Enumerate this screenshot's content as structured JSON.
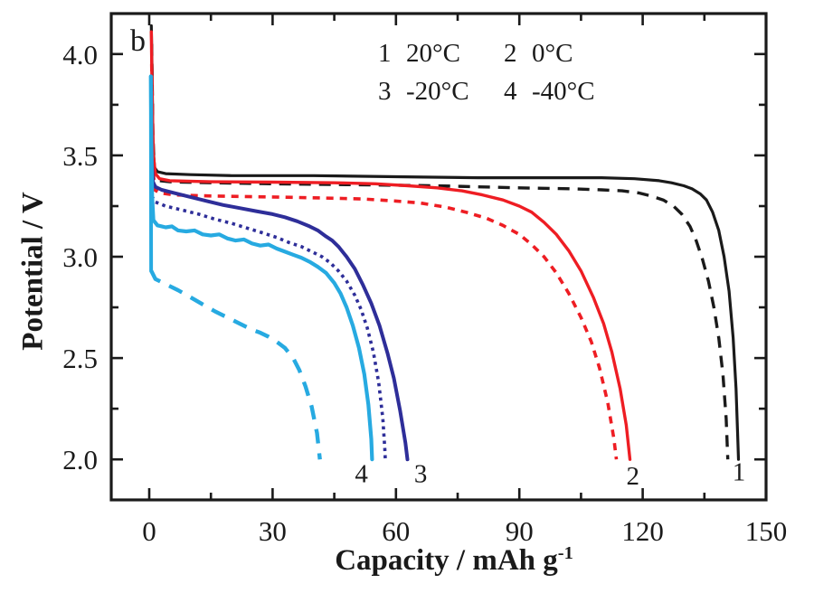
{
  "figure": {
    "panel_label": "b",
    "background": "#ffffff"
  },
  "legend": {
    "items": [
      {
        "num": "1",
        "temp": "20°C"
      },
      {
        "num": "2",
        "temp": "0°C"
      },
      {
        "num": "3",
        "temp": "-20°C"
      },
      {
        "num": "4",
        "temp": "-40°C"
      }
    ]
  },
  "axes": {
    "xlabel_main": "Capacity / mAh g",
    "xlabel_sup": "-1",
    "ylabel": "Potential / V"
  },
  "chart_data": {
    "type": "line",
    "title": "",
    "xlabel": "Capacity / mAh g^-1",
    "ylabel": "Potential / V",
    "xlim": [
      -9.24,
      150
    ],
    "ylim": [
      1.8,
      4.2
    ],
    "x_ticks_major": [
      0,
      30,
      60,
      90,
      120,
      150
    ],
    "x_ticks_minor": [
      15,
      45,
      75,
      105,
      135
    ],
    "y_ticks_major": [
      2.0,
      2.5,
      3.0,
      3.5,
      4.0
    ],
    "y_ticks_minor": [
      2.25,
      2.75,
      3.25,
      3.75
    ],
    "grid": false,
    "legend_position": "top-center-inside",
    "legend_note": "1 20°C, 2 0°C, 3 -20°C, 4 -40°C; solid and dashed curve pair per temperature",
    "axis_color": "#1a1a1a",
    "series": [
      {
        "name": "curve-1-20C-solid",
        "temperature": "20°C",
        "label": "1",
        "color": "#1a1a1a",
        "width": 3.2,
        "dash": "",
        "points": [
          [
            0.5,
            4.14
          ],
          [
            0.7,
            3.9
          ],
          [
            0.9,
            3.55
          ],
          [
            1.3,
            3.44
          ],
          [
            2,
            3.42
          ],
          [
            4,
            3.41
          ],
          [
            10,
            3.405
          ],
          [
            20,
            3.4
          ],
          [
            40,
            3.4
          ],
          [
            60,
            3.395
          ],
          [
            80,
            3.39
          ],
          [
            100,
            3.39
          ],
          [
            110,
            3.39
          ],
          [
            118,
            3.385
          ],
          [
            124,
            3.375
          ],
          [
            127,
            3.365
          ],
          [
            130,
            3.35
          ],
          [
            132,
            3.335
          ],
          [
            134,
            3.31
          ],
          [
            135.5,
            3.28
          ],
          [
            137,
            3.22
          ],
          [
            138.5,
            3.13
          ],
          [
            139.8,
            3.0
          ],
          [
            141,
            2.83
          ],
          [
            142,
            2.6
          ],
          [
            142.7,
            2.35
          ],
          [
            143.1,
            2.12
          ],
          [
            143.3,
            2.0
          ]
        ]
      },
      {
        "name": "curve-1-20C-dashed",
        "temperature": "20°C",
        "label": "1",
        "color": "#1a1a1a",
        "width": 3.4,
        "dash": "13 9",
        "points": [
          [
            0.6,
            4.05
          ],
          [
            0.9,
            3.6
          ],
          [
            1.3,
            3.4
          ],
          [
            2.5,
            3.375
          ],
          [
            5,
            3.37
          ],
          [
            15,
            3.365
          ],
          [
            30,
            3.36
          ],
          [
            50,
            3.355
          ],
          [
            70,
            3.35
          ],
          [
            90,
            3.34
          ],
          [
            103,
            3.335
          ],
          [
            110,
            3.33
          ],
          [
            115,
            3.325
          ],
          [
            119,
            3.315
          ],
          [
            122,
            3.3
          ],
          [
            125,
            3.28
          ],
          [
            127.5,
            3.25
          ],
          [
            129.5,
            3.21
          ],
          [
            131.5,
            3.15
          ],
          [
            133,
            3.08
          ],
          [
            134.5,
            2.99
          ],
          [
            136,
            2.88
          ],
          [
            137.3,
            2.75
          ],
          [
            138.5,
            2.6
          ],
          [
            139.5,
            2.42
          ],
          [
            140.3,
            2.2
          ],
          [
            140.7,
            2.0
          ]
        ]
      },
      {
        "name": "curve-2-0C-solid",
        "temperature": "0°C",
        "label": "2",
        "color": "#ee1d23",
        "width": 3.4,
        "dash": "",
        "points": [
          [
            0.5,
            4.11
          ],
          [
            0.7,
            3.8
          ],
          [
            1,
            3.5
          ],
          [
            1.5,
            3.41
          ],
          [
            2.5,
            3.385
          ],
          [
            5,
            3.375
          ],
          [
            15,
            3.37
          ],
          [
            30,
            3.368
          ],
          [
            45,
            3.365
          ],
          [
            55,
            3.36
          ],
          [
            63,
            3.35
          ],
          [
            70,
            3.34
          ],
          [
            76,
            3.325
          ],
          [
            81,
            3.305
          ],
          [
            86,
            3.28
          ],
          [
            90,
            3.25
          ],
          [
            93,
            3.22
          ],
          [
            96,
            3.17
          ],
          [
            99,
            3.11
          ],
          [
            102,
            3.03
          ],
          [
            105,
            2.93
          ],
          [
            108,
            2.8
          ],
          [
            110.5,
            2.67
          ],
          [
            112.5,
            2.53
          ],
          [
            114.5,
            2.35
          ],
          [
            116,
            2.17
          ],
          [
            116.9,
            2.0
          ]
        ]
      },
      {
        "name": "curve-2-0C-dashed",
        "temperature": "0°C",
        "label": "2",
        "color": "#ee1d23",
        "width": 3.6,
        "dash": "8 7",
        "points": [
          [
            0.6,
            3.95
          ],
          [
            0.9,
            3.45
          ],
          [
            1.3,
            3.33
          ],
          [
            2.5,
            3.315
          ],
          [
            6,
            3.305
          ],
          [
            15,
            3.3
          ],
          [
            30,
            3.295
          ],
          [
            42,
            3.29
          ],
          [
            52,
            3.285
          ],
          [
            60,
            3.275
          ],
          [
            66,
            3.265
          ],
          [
            72,
            3.245
          ],
          [
            77,
            3.22
          ],
          [
            82,
            3.19
          ],
          [
            86,
            3.155
          ],
          [
            90,
            3.11
          ],
          [
            93,
            3.06
          ],
          [
            96,
            3.0
          ],
          [
            99,
            2.92
          ],
          [
            102,
            2.82
          ],
          [
            105,
            2.7
          ],
          [
            107.5,
            2.58
          ],
          [
            109.5,
            2.45
          ],
          [
            111.5,
            2.28
          ],
          [
            113,
            2.1
          ],
          [
            113.6,
            2.0
          ]
        ]
      },
      {
        "name": "curve-3-neg20C-solid",
        "temperature": "-20°C",
        "label": "3",
        "color": "#2e2e99",
        "width": 4,
        "dash": "",
        "points": [
          [
            0.6,
            3.48
          ],
          [
            0.9,
            3.37
          ],
          [
            1.5,
            3.345
          ],
          [
            3,
            3.33
          ],
          [
            6,
            3.315
          ],
          [
            10,
            3.295
          ],
          [
            14,
            3.275
          ],
          [
            18,
            3.255
          ],
          [
            22,
            3.24
          ],
          [
            26,
            3.225
          ],
          [
            30,
            3.21
          ],
          [
            33,
            3.195
          ],
          [
            36,
            3.175
          ],
          [
            39,
            3.15
          ],
          [
            41,
            3.13
          ],
          [
            43,
            3.1
          ],
          [
            44.5,
            3.08
          ],
          [
            46,
            3.05
          ],
          [
            48,
            3.0
          ],
          [
            50,
            2.94
          ],
          [
            52,
            2.86
          ],
          [
            54,
            2.77
          ],
          [
            56,
            2.66
          ],
          [
            58,
            2.52
          ],
          [
            59.5,
            2.4
          ],
          [
            61,
            2.24
          ],
          [
            62.3,
            2.08
          ],
          [
            62.8,
            2.0
          ]
        ]
      },
      {
        "name": "curve-3-neg20C-dotted",
        "temperature": "-20°C",
        "label": "3",
        "color": "#2e2e99",
        "width": 3.6,
        "dash": "3.5 4.5",
        "points": [
          [
            0.6,
            3.3
          ],
          [
            1.5,
            3.27
          ],
          [
            4,
            3.25
          ],
          [
            8,
            3.23
          ],
          [
            12,
            3.21
          ],
          [
            16,
            3.185
          ],
          [
            20,
            3.165
          ],
          [
            24,
            3.14
          ],
          [
            28,
            3.115
          ],
          [
            31,
            3.095
          ],
          [
            34,
            3.07
          ],
          [
            37,
            3.05
          ],
          [
            40,
            3.02
          ],
          [
            42,
            3.0
          ],
          [
            44,
            2.97
          ],
          [
            46,
            2.93
          ],
          [
            48,
            2.88
          ],
          [
            50,
            2.81
          ],
          [
            51.5,
            2.74
          ],
          [
            53,
            2.65
          ],
          [
            54.5,
            2.53
          ],
          [
            55.8,
            2.38
          ],
          [
            56.8,
            2.2
          ],
          [
            57.3,
            2.05
          ],
          [
            57.4,
            2.0
          ]
        ]
      },
      {
        "name": "curve-4-neg40C-spike",
        "temperature": "-40°C",
        "label": "4",
        "color": "#27aae1",
        "width": 4,
        "dash": "",
        "points": [
          [
            0.4,
            3.89
          ],
          [
            0.45,
            2.93
          ]
        ]
      },
      {
        "name": "curve-4-neg40C-solid",
        "temperature": "-40°C",
        "label": "4",
        "color": "#27aae1",
        "width": 4.2,
        "dash": "",
        "points": [
          [
            0.4,
            3.89
          ],
          [
            0.5,
            3.6
          ],
          [
            0.7,
            3.3
          ],
          [
            1,
            3.18
          ],
          [
            2,
            3.155
          ],
          [
            4,
            3.145
          ],
          [
            5.5,
            3.15
          ],
          [
            7,
            3.13
          ],
          [
            9,
            3.125
          ],
          [
            11,
            3.13
          ],
          [
            13,
            3.11
          ],
          [
            15,
            3.105
          ],
          [
            17,
            3.11
          ],
          [
            19,
            3.09
          ],
          [
            21,
            3.08
          ],
          [
            23,
            3.085
          ],
          [
            25,
            3.065
          ],
          [
            27,
            3.055
          ],
          [
            29,
            3.06
          ],
          [
            31,
            3.04
          ],
          [
            33,
            3.025
          ],
          [
            35,
            3.01
          ],
          [
            37,
            2.995
          ],
          [
            39,
            2.975
          ],
          [
            41,
            2.95
          ],
          [
            43,
            2.92
          ],
          [
            45,
            2.87
          ],
          [
            46.5,
            2.82
          ],
          [
            48,
            2.75
          ],
          [
            49.5,
            2.66
          ],
          [
            51,
            2.55
          ],
          [
            52.3,
            2.42
          ],
          [
            53.3,
            2.27
          ],
          [
            54,
            2.1
          ],
          [
            54.2,
            2.0
          ]
        ]
      },
      {
        "name": "curve-4-neg40C-dashed",
        "temperature": "-40°C",
        "label": "4",
        "color": "#27aae1",
        "width": 4.4,
        "dash": "16 11",
        "points": [
          [
            0.5,
            2.93
          ],
          [
            1.5,
            2.89
          ],
          [
            4,
            2.865
          ],
          [
            7,
            2.835
          ],
          [
            10,
            2.8
          ],
          [
            13,
            2.765
          ],
          [
            16,
            2.73
          ],
          [
            19,
            2.7
          ],
          [
            22,
            2.67
          ],
          [
            25,
            2.64
          ],
          [
            27,
            2.625
          ],
          [
            29,
            2.605
          ],
          [
            31,
            2.58
          ],
          [
            33,
            2.55
          ],
          [
            35,
            2.5
          ],
          [
            36.5,
            2.44
          ],
          [
            38,
            2.36
          ],
          [
            39.5,
            2.26
          ],
          [
            40.8,
            2.13
          ],
          [
            41.5,
            2.0
          ]
        ]
      }
    ],
    "curve_labels": [
      {
        "text": "4",
        "x": 51.6,
        "v": 1.94
      },
      {
        "text": "3",
        "x": 66.0,
        "v": 1.94
      },
      {
        "text": "2",
        "x": 117.6,
        "v": 1.93
      },
      {
        "text": "1",
        "x": 143.4,
        "v": 1.95
      }
    ]
  }
}
